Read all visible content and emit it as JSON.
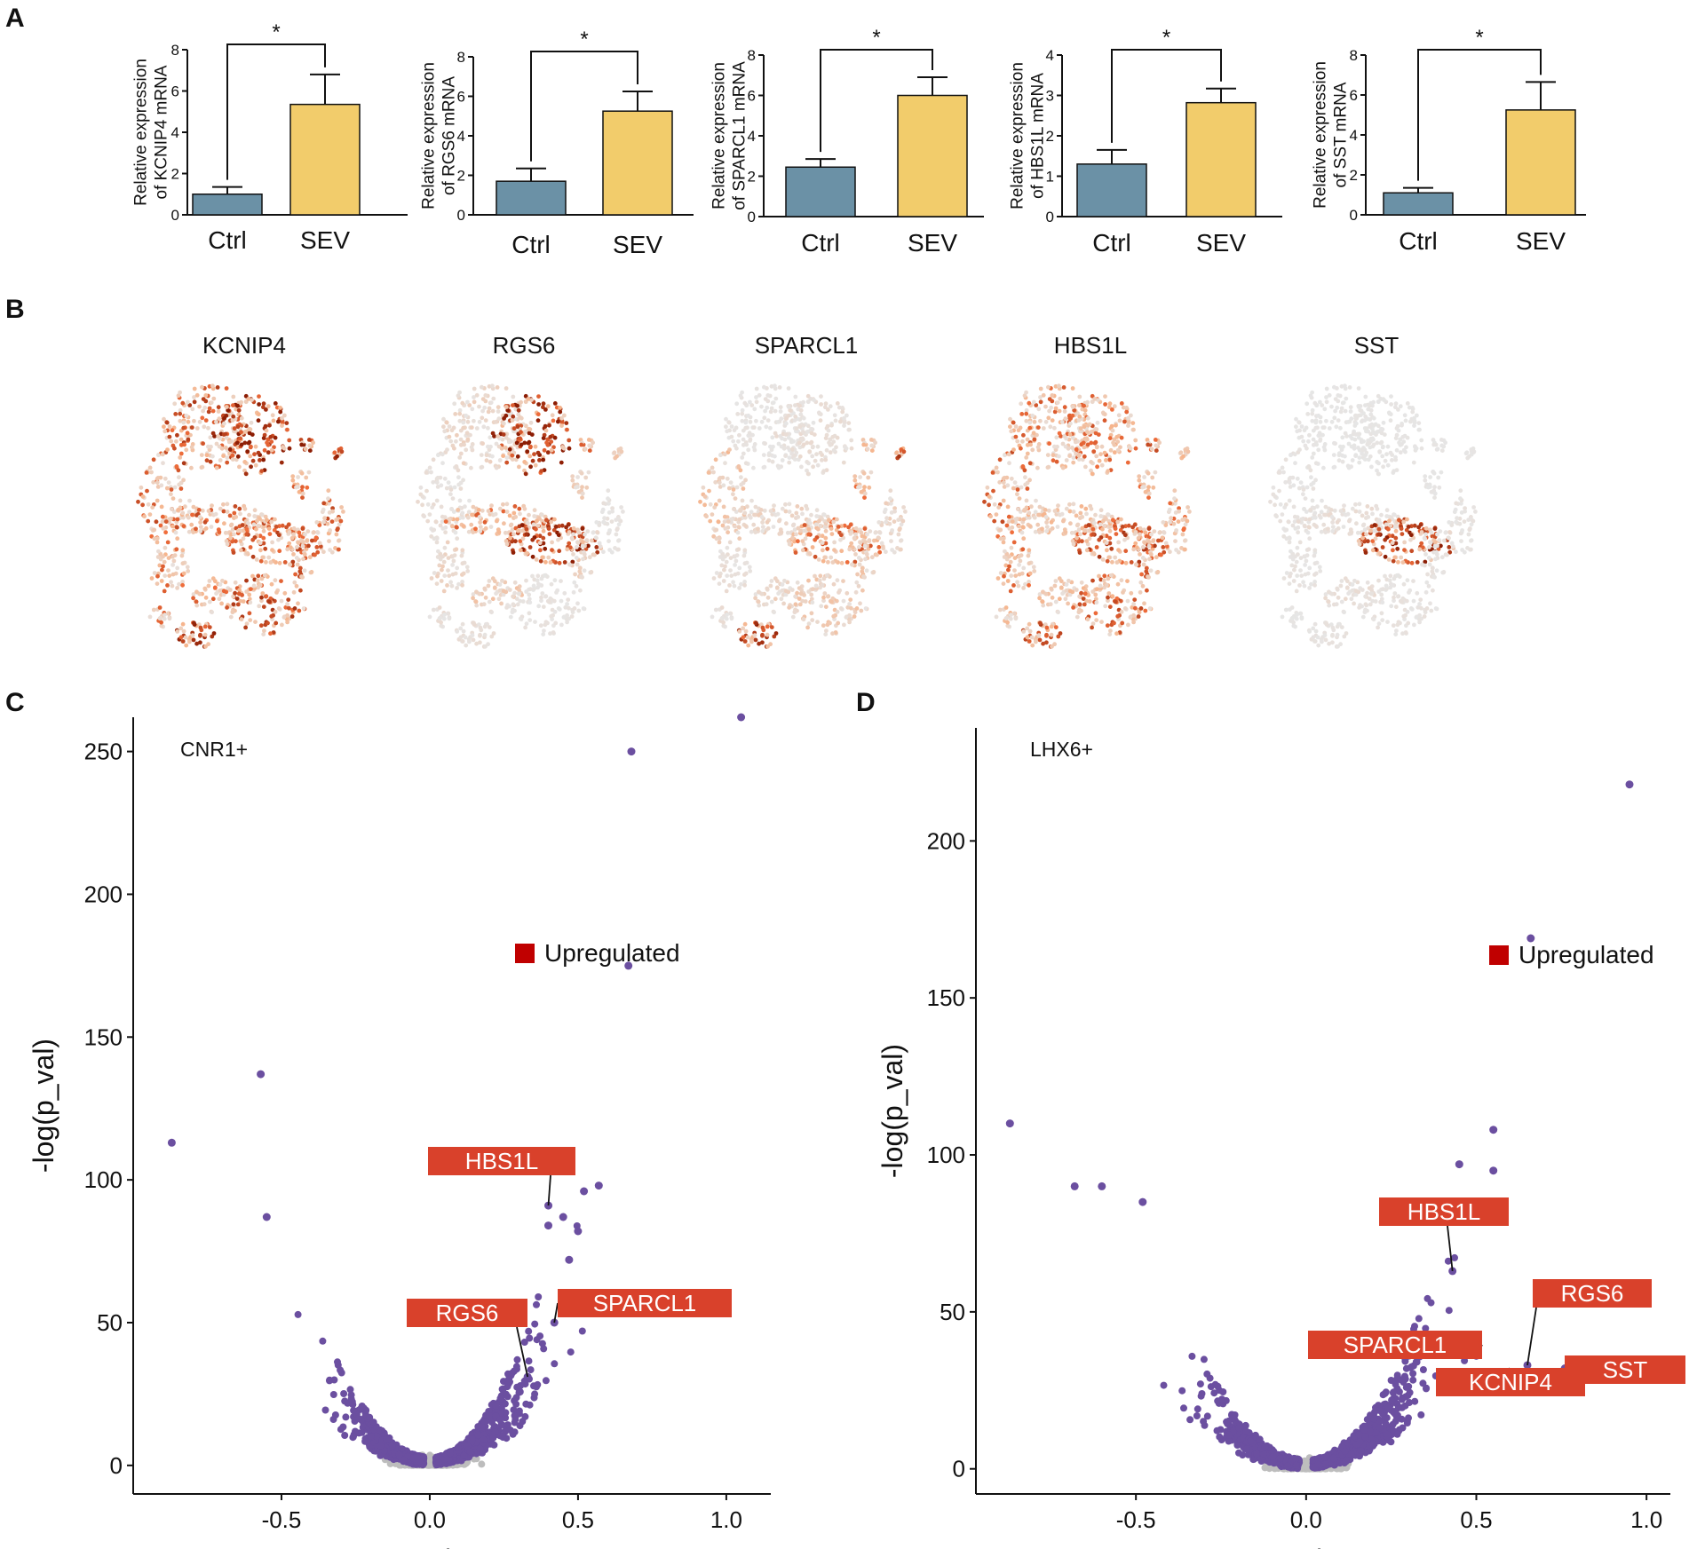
{
  "panel_labels": {
    "a": "A",
    "b": "B",
    "c": "C",
    "d": "D"
  },
  "colors": {
    "ctrl_bar": "#6b91a6",
    "sev_bar": "#f2cc6b",
    "volcano_point": "#6b4fa0",
    "nonsig_point": "#bdbdbd",
    "upregulated": "#c00000",
    "gene_label_bg": "#d9412b",
    "tsne_low": "#e6e6e6",
    "tsne_high": "#8c1d04"
  },
  "chart_data": [
    {
      "type": "bar",
      "panel": "A",
      "gene": "KCNIP4",
      "categories": [
        "Ctrl",
        "SEV"
      ],
      "values": [
        1.0,
        5.35
      ],
      "errors": [
        0.35,
        1.45
      ],
      "ylabel_line1": "Relative expression",
      "ylabel_line2": "of KCNIP4 mRNA",
      "ylim": [
        0,
        8
      ],
      "yticks": [
        "0",
        "2",
        "4",
        "6",
        "8"
      ],
      "significance": "*"
    },
    {
      "type": "bar",
      "panel": "A",
      "gene": "RGS6",
      "categories": [
        "Ctrl",
        "SEV"
      ],
      "values": [
        1.7,
        5.25
      ],
      "errors": [
        0.65,
        1.0
      ],
      "ylabel_line1": "Relative expression",
      "ylabel_line2": "of RGS6 mRNA",
      "ylim": [
        0,
        8
      ],
      "yticks": [
        "0",
        "2",
        "4",
        "6",
        "8"
      ],
      "significance": "*"
    },
    {
      "type": "bar",
      "panel": "A",
      "gene": "SPARCL1",
      "categories": [
        "Ctrl",
        "SEV"
      ],
      "values": [
        2.45,
        6.0
      ],
      "errors": [
        0.4,
        0.9
      ],
      "ylabel_line1": "Relative expression",
      "ylabel_line2": "of SPARCL1 mRNA",
      "ylim": [
        0,
        8
      ],
      "yticks": [
        "0",
        "2",
        "4",
        "6",
        "8"
      ],
      "significance": "*"
    },
    {
      "type": "bar",
      "panel": "A",
      "gene": "HBS1L",
      "categories": [
        "Ctrl",
        "SEV"
      ],
      "values": [
        1.3,
        2.82
      ],
      "errors": [
        0.35,
        0.35
      ],
      "ylabel_line1": "Relative expression",
      "ylabel_line2": "of HBS1L mRNA",
      "ylim": [
        0,
        4
      ],
      "yticks": [
        "0",
        "1",
        "2",
        "3",
        "4"
      ],
      "significance": "*"
    },
    {
      "type": "bar",
      "panel": "A",
      "gene": "SST",
      "categories": [
        "Ctrl",
        "SEV"
      ],
      "values": [
        1.1,
        5.25
      ],
      "errors": [
        0.25,
        1.4
      ],
      "ylabel_line1": "Relative expression",
      "ylabel_line2": "of SST mRNA",
      "ylim": [
        0,
        8
      ],
      "yticks": [
        "0",
        "2",
        "4",
        "6",
        "8"
      ],
      "significance": "*"
    },
    {
      "type": "scatter",
      "panel": "C",
      "inset_label": "CNR1+",
      "xlabel": "avg_logFC",
      "ylabel": "-log(p_val)",
      "xlim": [
        -1.0,
        1.15
      ],
      "ylim": [
        -10,
        262
      ],
      "xticks": [
        "-0.5",
        "0.0",
        "0.5",
        "1.0"
      ],
      "yticks": [
        "0",
        "50",
        "100",
        "150",
        "200",
        "250"
      ],
      "legend": "Upregulated",
      "highlight_points": [
        [
          1.05,
          262
        ],
        [
          0.68,
          250
        ],
        [
          0.67,
          175
        ],
        [
          -0.57,
          137
        ],
        [
          -0.87,
          113
        ],
        [
          -0.55,
          87
        ],
        [
          0.57,
          98
        ],
        [
          0.52,
          96
        ],
        [
          0.45,
          87
        ],
        [
          0.4,
          84
        ],
        [
          0.47,
          72
        ],
        [
          0.5,
          82
        ]
      ],
      "gene_labels": [
        {
          "text": "HBS1L",
          "x": 0.4,
          "y": 91
        },
        {
          "text": "SPARCL1",
          "x": 0.42,
          "y": 50
        },
        {
          "text": "RGS6",
          "x": 0.33,
          "y": 31
        }
      ]
    },
    {
      "type": "scatter",
      "panel": "D",
      "inset_label": "LHX6+",
      "xlabel": "avg_logFC",
      "ylabel": "-log(p_val)",
      "xlim": [
        -0.97,
        1.07
      ],
      "ylim": [
        -8,
        236
      ],
      "xticks": [
        "-0.5",
        "0.0",
        "0.5",
        "1.0"
      ],
      "yticks": [
        "0",
        "50",
        "100",
        "150",
        "200"
      ],
      "legend": "Upregulated",
      "highlight_points": [
        [
          0.95,
          218
        ],
        [
          0.66,
          169
        ],
        [
          -0.87,
          110
        ],
        [
          0.55,
          108
        ],
        [
          0.45,
          97
        ],
        [
          -0.68,
          90
        ],
        [
          -0.6,
          90
        ],
        [
          -0.48,
          85
        ],
        [
          0.55,
          95
        ],
        [
          0.48,
          81
        ]
      ],
      "gene_labels": [
        {
          "text": "HBS1L",
          "x": 0.43,
          "y": 63
        },
        {
          "text": "RGS6",
          "x": 0.65,
          "y": 33
        },
        {
          "text": "SPARCL1",
          "x": 0.5,
          "y": 36
        },
        {
          "text": "SST",
          "x": 0.76,
          "y": 32
        },
        {
          "text": "KCNIP4",
          "x": 0.58,
          "y": 28
        }
      ]
    }
  ],
  "tsne": {
    "genes": [
      "KCNIP4",
      "RGS6",
      "SPARCL1",
      "HBS1L",
      "SST"
    ]
  }
}
